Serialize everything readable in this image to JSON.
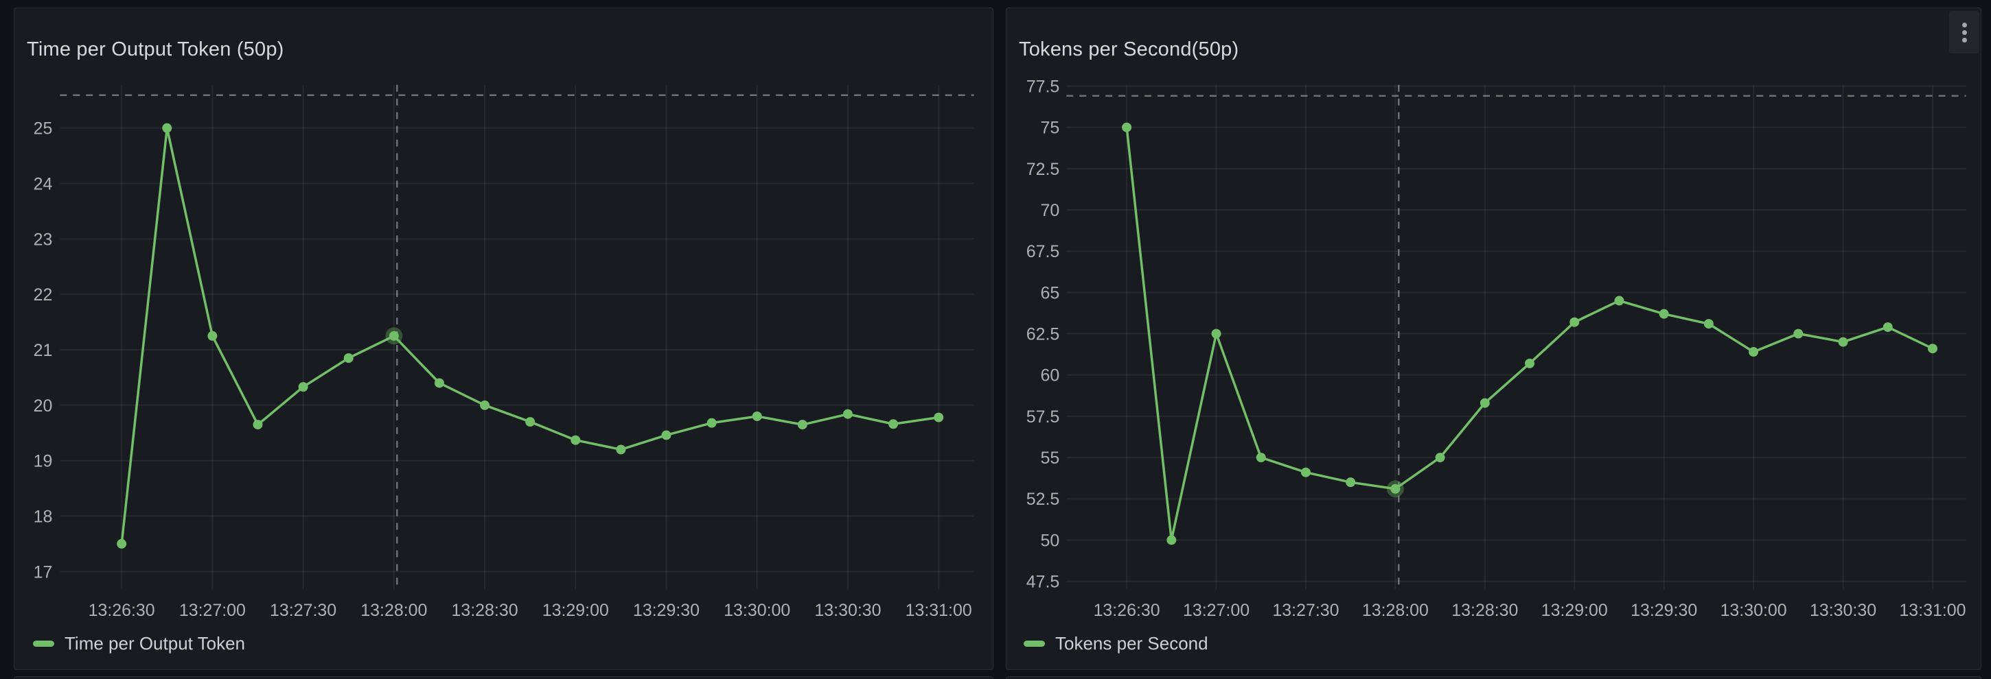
{
  "colors": {
    "page_background": "#111217",
    "panel_background": "#181B1F",
    "panel_border": "#2A2C33",
    "series_green": "#73BF69",
    "grid_line": "rgba(204,204,220,0.08)",
    "crosshair": "rgba(204,204,220,0.48)",
    "title_text": "#D8D9DA",
    "tick_text": "rgba(207,209,220,0.82)"
  },
  "panels": [
    {
      "name": "time-per-output-token",
      "has_menu": false
    },
    {
      "name": "tokens-per-second",
      "has_menu": true,
      "menu_icon": "kebab-menu-icon"
    }
  ],
  "chart_data": [
    {
      "type": "line",
      "title": "Time per Output Token (50p)",
      "x": [
        "13:26:30",
        "13:26:45",
        "13:27:00",
        "13:27:15",
        "13:27:30",
        "13:27:45",
        "13:28:00",
        "13:28:15",
        "13:28:30",
        "13:28:45",
        "13:29:00",
        "13:29:15",
        "13:29:30",
        "13:29:45",
        "13:30:00",
        "13:30:15",
        "13:30:30",
        "13:30:45",
        "13:31:00"
      ],
      "series": [
        {
          "name": "Time per Output Token",
          "color": "#73BF69",
          "values": [
            17.5,
            25.0,
            21.25,
            19.65,
            20.33,
            20.85,
            21.25,
            20.4,
            20.0,
            19.7,
            19.37,
            19.2,
            19.46,
            19.68,
            19.8,
            19.65,
            19.84,
            19.66,
            19.78
          ]
        }
      ],
      "x_tick_labels": [
        "13:26:30",
        "13:27:00",
        "13:27:30",
        "13:28:00",
        "13:28:30",
        "13:29:00",
        "13:29:30",
        "13:30:00",
        "13:30:30",
        "13:31:00"
      ],
      "y_tick_labels": [
        "17",
        "18",
        "19",
        "20",
        "21",
        "22",
        "23",
        "24",
        "25"
      ],
      "ylim": [
        16.7,
        25.8
      ],
      "xlim": [
        "13:26:10",
        "13:31:12"
      ],
      "xlabel": "",
      "ylabel": "",
      "grid": true,
      "legend_position": "bottom-left",
      "hovered_index": 6,
      "crosshair": {
        "x_label": "13:28:00",
        "horizontal_line_value": 25.6
      }
    },
    {
      "type": "line",
      "title": "Tokens per Second(50p)",
      "x": [
        "13:26:30",
        "13:26:45",
        "13:27:00",
        "13:27:15",
        "13:27:30",
        "13:27:45",
        "13:28:00",
        "13:28:15",
        "13:28:30",
        "13:28:45",
        "13:29:00",
        "13:29:15",
        "13:29:30",
        "13:29:45",
        "13:30:00",
        "13:30:15",
        "13:30:30",
        "13:30:45",
        "13:31:00"
      ],
      "series": [
        {
          "name": "Tokens per Second",
          "color": "#73BF69",
          "values": [
            75.0,
            50.0,
            62.5,
            55.0,
            54.1,
            53.5,
            53.1,
            55.0,
            58.3,
            60.7,
            63.2,
            64.5,
            63.7,
            63.1,
            61.4,
            62.5,
            62.0,
            62.9,
            61.6
          ]
        }
      ],
      "x_tick_labels": [
        "13:26:30",
        "13:27:00",
        "13:27:30",
        "13:28:00",
        "13:28:30",
        "13:29:00",
        "13:29:30",
        "13:30:00",
        "13:30:30",
        "13:31:00"
      ],
      "y_tick_labels": [
        "47.5",
        "50",
        "52.5",
        "55",
        "57.5",
        "60",
        "62.5",
        "65",
        "67.5",
        "70",
        "72.5",
        "75",
        "77.5"
      ],
      "ylim": [
        47.0,
        77.6
      ],
      "xlim": [
        "13:26:10",
        "13:31:12"
      ],
      "xlabel": "",
      "ylabel": "",
      "grid": true,
      "legend_position": "bottom-left",
      "hovered_index": 6,
      "crosshair": {
        "x_label": "13:28:00",
        "horizontal_line_value": 76.9
      }
    }
  ]
}
